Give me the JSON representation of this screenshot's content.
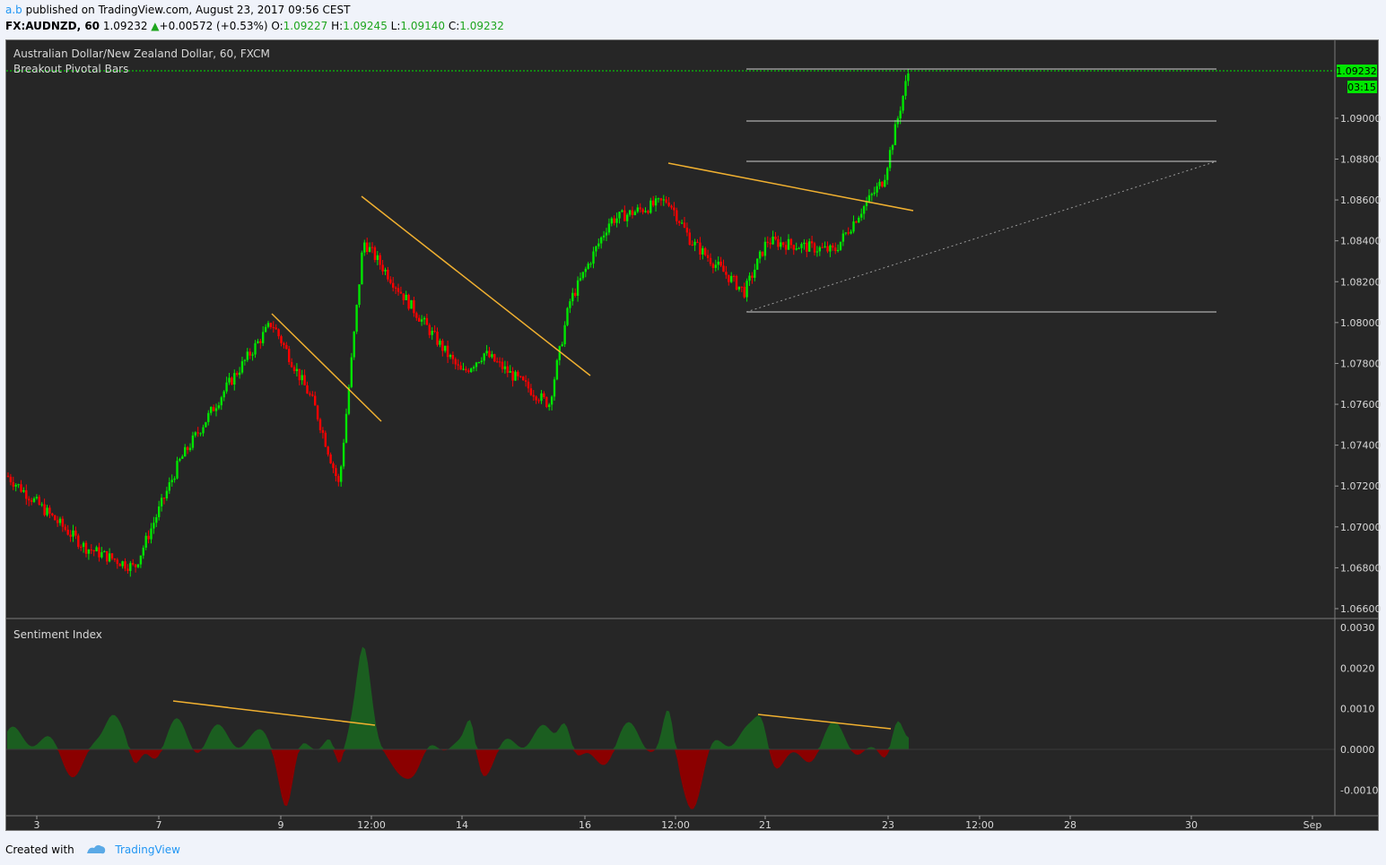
{
  "header": {
    "publisher": "a.b",
    "published_text": "published on TradingView.com, August 23, 2017 09:56 CEST",
    "symbol": "FX:AUDNZD, 60",
    "last": "1.09232",
    "change_arrow": "▲",
    "change": "+0.00572 (+0.53%)",
    "o_label": "O:",
    "o_value": "1.09227",
    "h_label": "H:",
    "h_value": "1.09245",
    "l_label": "L:",
    "l_value": "1.09140",
    "c_label": "C:",
    "c_value": "1.09232"
  },
  "chart": {
    "pane_title": "Australian Dollar/New Zealand Dollar, 60, FXCM",
    "indicator_label": "Breakout Pivotal Bars",
    "price_tag": "1.09232",
    "countdown_tag": "03:15",
    "lower_pane_title": "Sentiment Index",
    "price_ticks": [
      "1.09000",
      "1.08800",
      "1.08600",
      "1.08400",
      "1.08200",
      "1.08000",
      "1.07800",
      "1.07600",
      "1.07400",
      "1.07200",
      "1.07000",
      "1.06800",
      "1.06600"
    ],
    "sentiment_ticks": [
      "0.0030",
      "0.0020",
      "0.0010",
      "0.0000",
      "-0.0010"
    ],
    "time_ticks": [
      "3",
      "7",
      "9",
      "12:00",
      "14",
      "16",
      "12:00",
      "21",
      "23",
      "12:00",
      "28",
      "30",
      "Sep"
    ]
  },
  "footer": {
    "created_with": "Created with",
    "brand": "TradingView"
  },
  "colors": {
    "background": "#262626",
    "bull": "#00e600",
    "bear": "#ff0000",
    "trendline": "#f0b030",
    "sentiment_pos": "#1b5e20",
    "sentiment_neg": "#8b0000",
    "brand_blue": "#2196f3"
  },
  "chart_data": {
    "type": "candlestick",
    "title": "Australian Dollar/New Zealand Dollar, 60, FXCM",
    "ylim": [
      1.0653,
      1.0926
    ],
    "anchor_closes": [
      [
        "3",
        1.0725
      ],
      [
        "5",
        1.069
      ],
      [
        "6",
        1.068
      ],
      [
        "7",
        1.0732
      ],
      [
        "8",
        1.077
      ],
      [
        "9",
        1.08
      ],
      [
        "10",
        1.076
      ],
      [
        "11",
        1.072
      ],
      [
        "12:00",
        1.084
      ],
      [
        "13",
        1.081
      ],
      [
        "14",
        1.0775
      ],
      [
        "15",
        1.0785
      ],
      [
        "15b",
        1.076
      ],
      [
        "16",
        1.081
      ],
      [
        "17",
        1.085
      ],
      [
        "18",
        1.086
      ],
      [
        "19",
        1.084
      ],
      [
        "20",
        1.0815
      ],
      [
        "21",
        1.084
      ],
      [
        "22",
        1.0835
      ],
      [
        "22b",
        1.0855
      ],
      [
        "23",
        1.087
      ],
      [
        "23b",
        1.092
      ]
    ],
    "last_close": 1.09232,
    "sentiment_index": {
      "ylim": [
        -0.0014,
        0.003
      ],
      "peaks": [
        0.001,
        0.003,
        0.0009,
        0.0014
      ]
    }
  }
}
